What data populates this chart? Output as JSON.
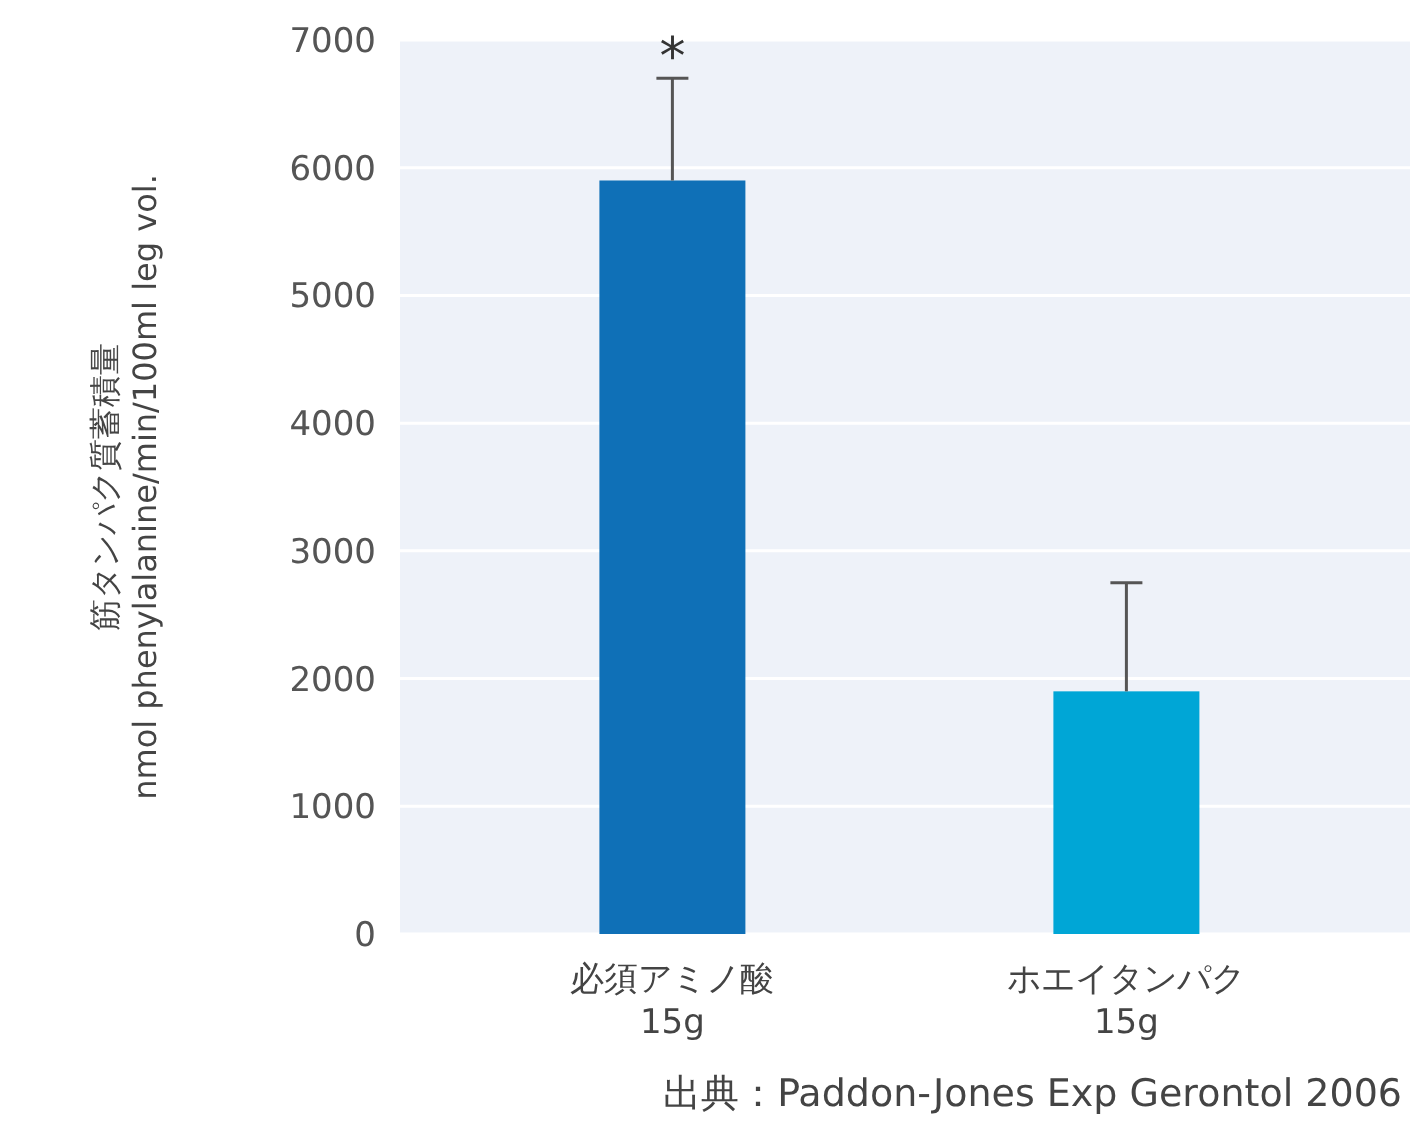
{
  "chart_data": {
    "type": "bar",
    "ylabel": "筋タンパク質蓄積量\nnmol phenylalanine/min/100ml leg vol.",
    "categories": [
      "必須アミノ酸\n15g",
      "ホエイタンパク\n15g"
    ],
    "values": [
      5900,
      1900
    ],
    "colors": [
      "#0f70b7",
      "#00a6d6"
    ],
    "errors": [
      [
        5900,
        6700
      ],
      [
        1900,
        2750
      ]
    ],
    "ylim": [
      0,
      7000
    ],
    "yticks": [
      0,
      1000,
      2000,
      3000,
      4000,
      5000,
      6000,
      7000
    ],
    "grid": "y",
    "annotations": [
      {
        "text": "*",
        "x": "必須アミノ酸\n15g",
        "y": 6700
      },
      "出典：Paddon-Jones Exp Gerontol 2006"
    ]
  }
}
